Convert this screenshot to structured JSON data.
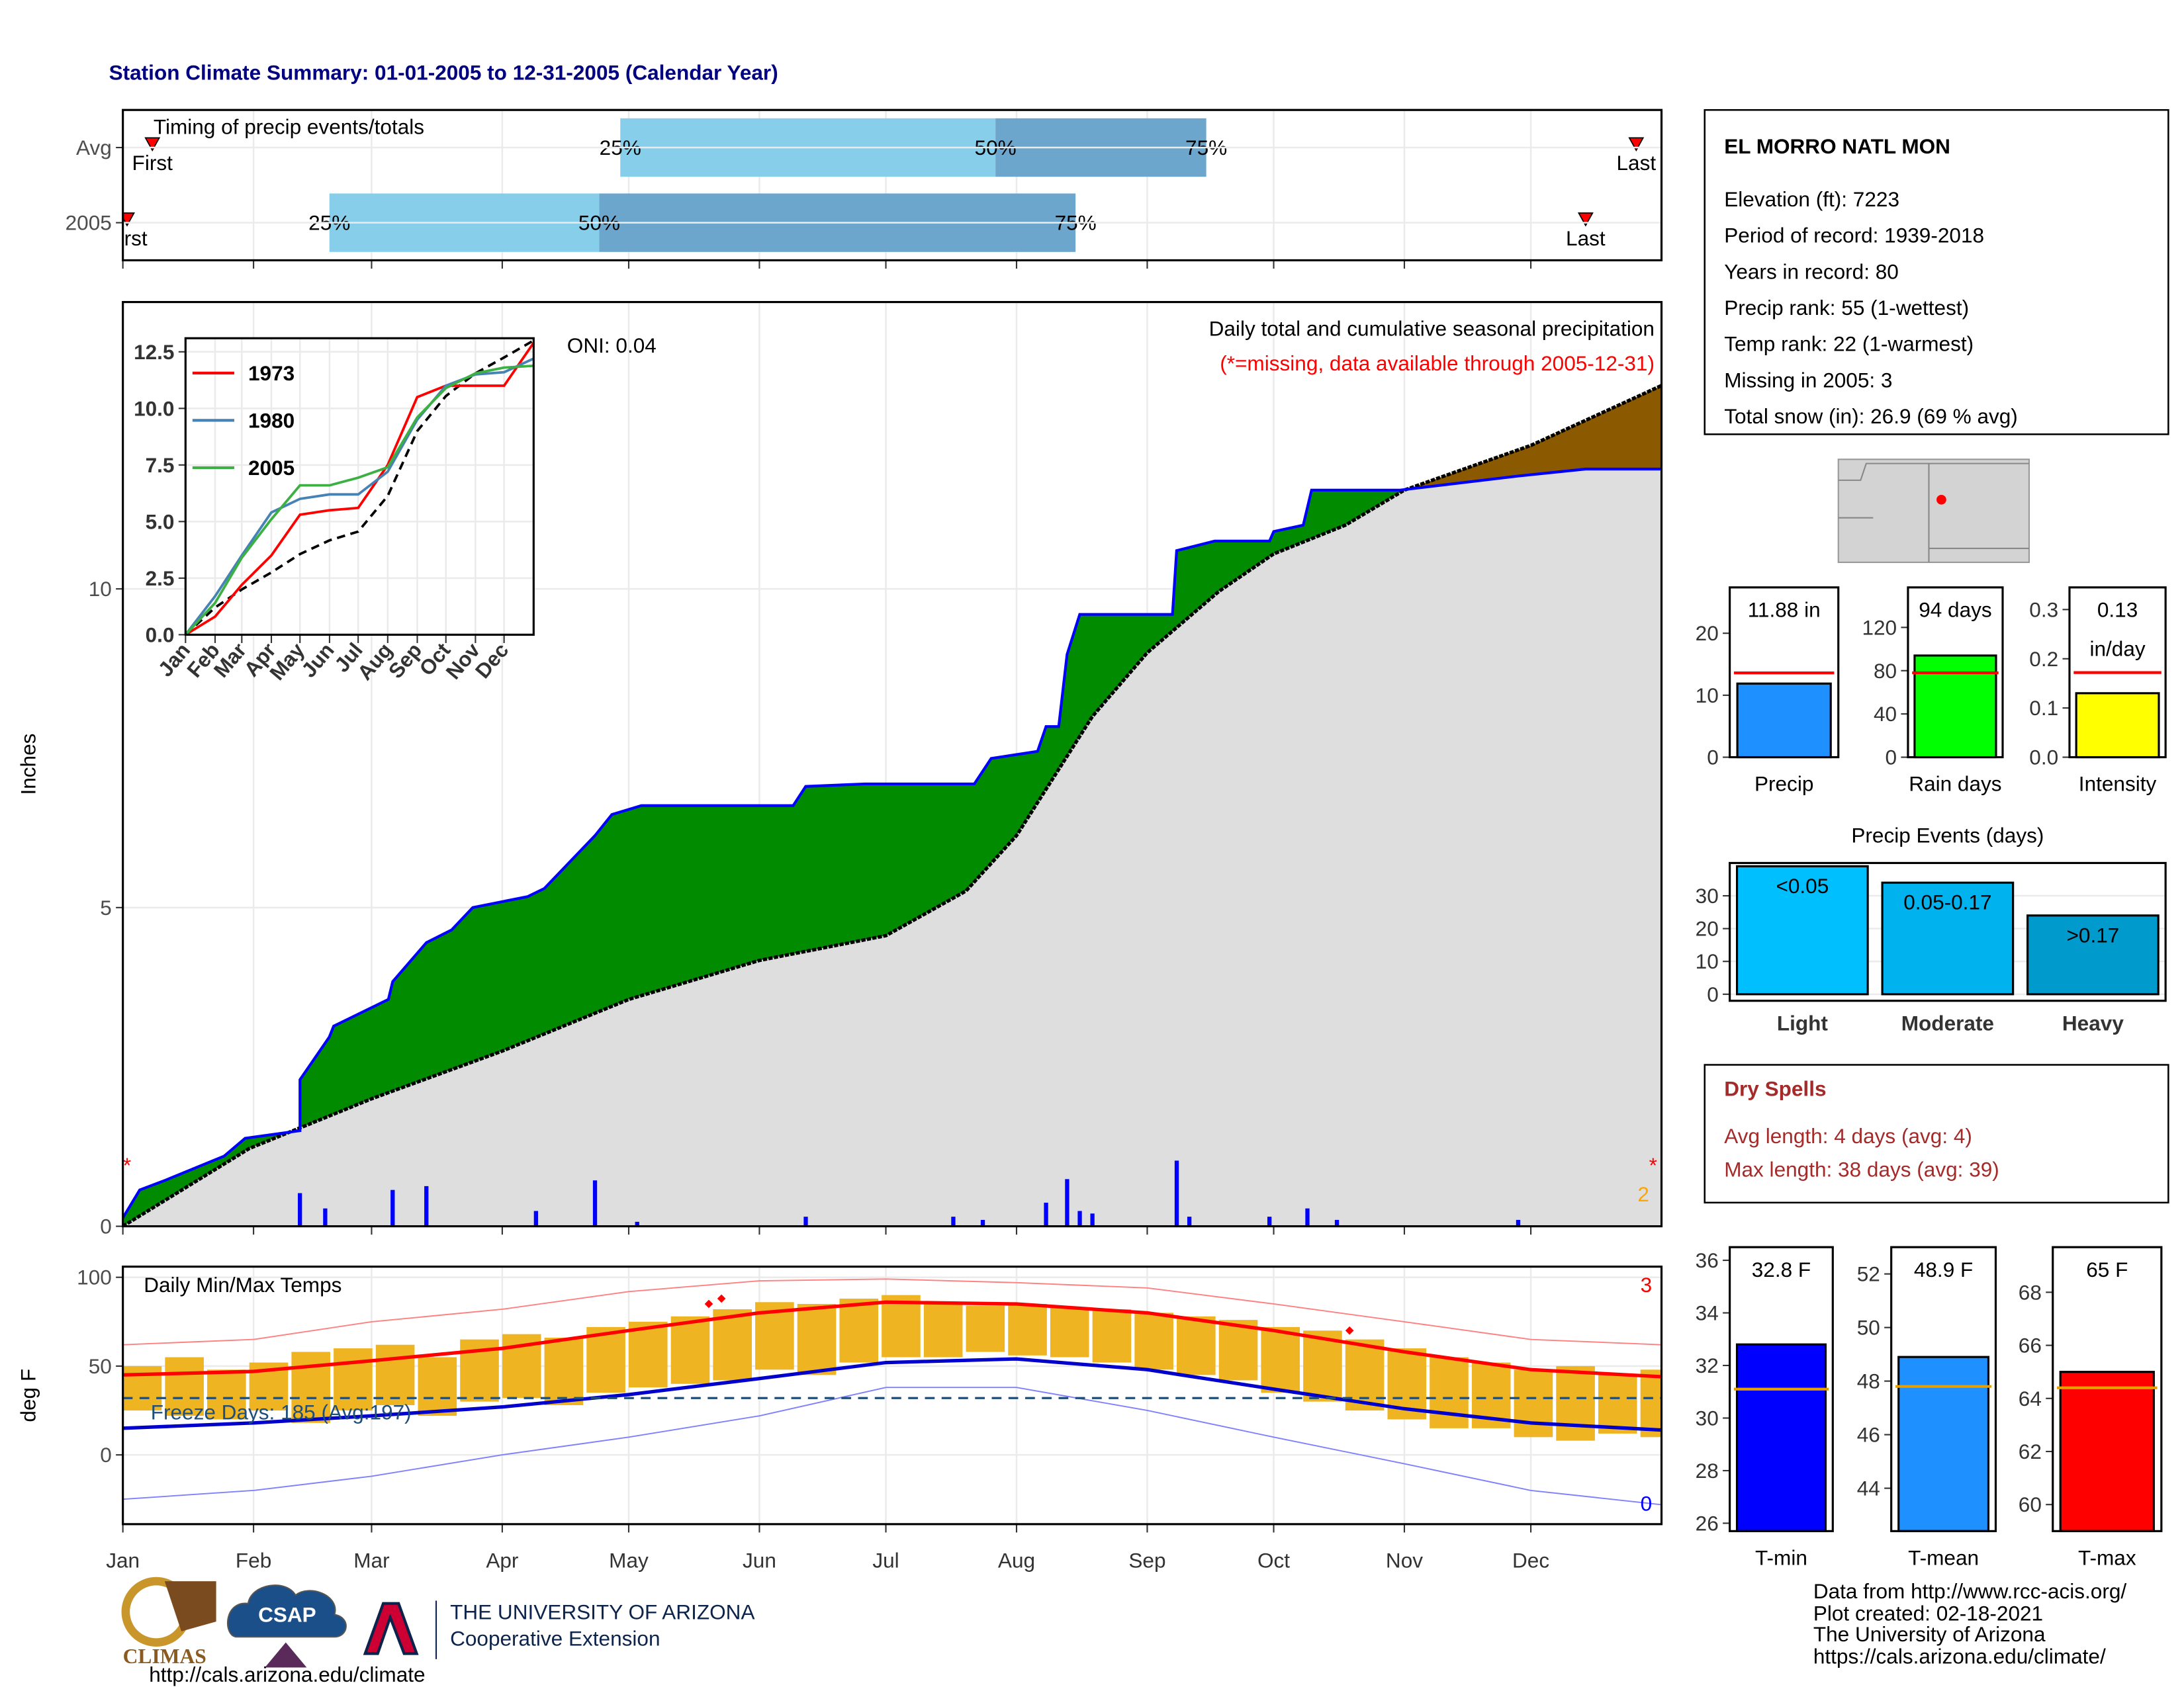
{
  "title": "Station Climate Summary: 01-01-2005 to 12-31-2005 (Calendar Year)",
  "station": {
    "name": "EL MORRO NATL MON",
    "lines": [
      "Elevation (ft): 7223",
      "Period of record: 1939-2018",
      "Years in record: 80",
      "Precip rank: 55 (1-wettest)",
      "Temp rank: 22 (1-warmest)",
      "Missing in 2005: 3",
      "Total snow (in): 26.9 (69 % avg)"
    ]
  },
  "dry_spells": {
    "title": "Dry Spells",
    "lines": [
      "Avg length: 4 days (avg: 4)",
      "Max length: 38 days (avg: 39)"
    ]
  },
  "footer": {
    "lines": [
      "Data from http://www.rcc-acis.org/",
      "Plot created: 02-18-2021",
      "The University of Arizona",
      "https://cals.arizona.edu/climate/"
    ]
  },
  "logos": {
    "climas": "CLIMAS",
    "csap": "CSAP",
    "csap_url": "http://cals.arizona.edu/climate",
    "university": "THE UNIVERSITY OF ARIZONA",
    "extension": "Cooperative Extension"
  },
  "chart_data": [
    {
      "type": "timing",
      "title": "Timing of precip events/totals",
      "categories": [
        "Avg",
        "2005"
      ],
      "series": [
        {
          "name": "First",
          "values": [
            7,
            1
          ]
        },
        {
          "name": "25%",
          "values": [
            118,
            49
          ]
        },
        {
          "name": "50%",
          "values": [
            207,
            113
          ]
        },
        {
          "name": "75%",
          "values": [
            257,
            226
          ]
        },
        {
          "name": "Last",
          "values": [
            359,
            347
          ]
        }
      ],
      "colors": [
        "#87ceeb",
        "#6ca6cd"
      ],
      "marker_color": "#ff0000",
      "xlim": [
        0,
        365
      ],
      "xticks": [
        0,
        31,
        59,
        90,
        120,
        151,
        181,
        212,
        243,
        273,
        304,
        334
      ]
    },
    {
      "type": "cumulative",
      "title": "Daily total and cumulative seasonal precipitation",
      "subtitle": "(*=missing, data available through 2005-12-31)",
      "annotation": "ONI: 0.04",
      "ylabel": "Inches",
      "xlim": [
        0,
        365
      ],
      "xticks": [
        0,
        31,
        59,
        90,
        120,
        151,
        181,
        212,
        243,
        273,
        304,
        334
      ],
      "ylim": [
        0,
        14.5
      ],
      "yticks": [
        0,
        5,
        10
      ],
      "observed": {
        "color": "#0000ff",
        "x": [
          0,
          4,
          10,
          24,
          29,
          42,
          42,
          49,
          50,
          63,
          64,
          72,
          78,
          83,
          96,
          100,
          112,
          116,
          123,
          159,
          162,
          176,
          202,
          206,
          217,
          219,
          222,
          224,
          227,
          232,
          249,
          250,
          259,
          272,
          273,
          280,
          282,
          303,
          331,
          347,
          365
        ],
        "values": [
          0.13,
          0.57,
          0.72,
          1.1,
          1.38,
          1.5,
          2.3,
          2.97,
          3.14,
          3.56,
          3.84,
          4.45,
          4.65,
          5,
          5.17,
          5.3,
          6.13,
          6.46,
          6.6,
          6.6,
          6.9,
          6.94,
          6.94,
          7.34,
          7.45,
          7.84,
          7.84,
          8.97,
          9.6,
          9.6,
          9.6,
          10.6,
          10.75,
          10.75,
          10.9,
          11.0,
          11.55,
          11.55,
          11.77,
          11.88,
          11.88
        ]
      },
      "normal": {
        "color": "#000000",
        "x": [
          0,
          30,
          59,
          90,
          120,
          151,
          181,
          200,
          212,
          230,
          243,
          260,
          273,
          290,
          304,
          334,
          365
        ],
        "values": [
          0,
          1.22,
          2.0,
          2.75,
          3.56,
          4.17,
          4.56,
          5.26,
          6.13,
          8.0,
          9.0,
          9.96,
          10.55,
          11.0,
          11.55,
          12.25,
          13.19
        ]
      },
      "surplus_color": "#008b00",
      "deficit_color": "#8b5a00",
      "base_color": "#dedede",
      "daily": {
        "color": "#0000ff",
        "x": [
          42,
          48,
          64,
          72,
          98,
          112,
          122,
          162,
          197,
          204,
          219,
          224,
          227,
          230,
          250,
          253,
          272,
          281,
          288,
          331
        ],
        "values": [
          0.52,
          0.28,
          0.57,
          0.63,
          0.24,
          0.72,
          0.07,
          0.15,
          0.15,
          0.1,
          0.37,
          0.74,
          0.24,
          0.2,
          1.03,
          0.15,
          0.15,
          0.28,
          0.1,
          0.1
        ]
      },
      "missing": {
        "label": "*",
        "color": "#ff0000",
        "x": [
          1,
          363
        ]
      },
      "count_label": "2",
      "count_color": "#ffa500"
    },
    {
      "type": "line",
      "xlim": [
        0,
        365
      ],
      "x": [
        0,
        31,
        59,
        90,
        120,
        151,
        181,
        212,
        243,
        273,
        304,
        334,
        365
      ],
      "xticks": [
        {
          "value": 0,
          "label": "Jan"
        },
        {
          "value": 31,
          "label": "Feb"
        },
        {
          "value": 59,
          "label": "Mar"
        },
        {
          "value": 90,
          "label": "Apr"
        },
        {
          "value": 120,
          "label": "May"
        },
        {
          "value": 151,
          "label": "Jun"
        },
        {
          "value": 181,
          "label": "Jul"
        },
        {
          "value": 212,
          "label": "Aug"
        },
        {
          "value": 243,
          "label": "Sep"
        },
        {
          "value": 273,
          "label": "Oct"
        },
        {
          "value": 304,
          "label": "Nov"
        },
        {
          "value": 334,
          "label": "Dec"
        }
      ],
      "ylim": [
        0,
        13.1
      ],
      "yticks": [
        {
          "value": 0,
          "label": "0.0"
        },
        2.5,
        {
          "value": 5,
          "label": "5.0"
        },
        7.5,
        {
          "value": 10,
          "label": "10.0"
        },
        12.5
      ],
      "series": [
        {
          "name": "1973",
          "color": "#ff0000",
          "values": [
            0,
            0.8,
            2.2,
            3.5,
            5.3,
            5.5,
            5.6,
            7.5,
            10.5,
            11.0,
            11.0,
            11.0,
            12.9
          ]
        },
        {
          "name": "1980",
          "color": "#4682b4",
          "values": [
            0,
            1.7,
            3.5,
            5.4,
            6.0,
            6.2,
            6.2,
            7.2,
            9.5,
            11.0,
            11.5,
            11.6,
            12.2
          ]
        },
        {
          "name": "2005",
          "color": "#3cb043",
          "values": [
            0,
            1.4,
            3.4,
            5.1,
            6.6,
            6.6,
            6.94,
            7.4,
            9.6,
            10.9,
            11.55,
            11.8,
            11.88
          ]
        }
      ],
      "normal": {
        "color": "#000000",
        "values": [
          0,
          1.2,
          2.0,
          2.75,
          3.56,
          4.17,
          4.56,
          6.13,
          9.0,
          10.55,
          11.55,
          12.25,
          13.0
        ]
      }
    },
    {
      "type": "range",
      "title": "Daily Min/Max Temps",
      "ylabel": "deg F",
      "xlim": [
        0,
        365
      ],
      "xticks": [
        {
          "value": 0,
          "label": "Jan"
        },
        {
          "value": 31,
          "label": "Feb"
        },
        {
          "value": 59,
          "label": "Mar"
        },
        {
          "value": 90,
          "label": "Apr"
        },
        {
          "value": 120,
          "label": "May"
        },
        {
          "value": 151,
          "label": "Jun"
        },
        {
          "value": 181,
          "label": "Jul"
        },
        {
          "value": 212,
          "label": "Aug"
        },
        {
          "value": 243,
          "label": "Sep"
        },
        {
          "value": 273,
          "label": "Oct"
        },
        {
          "value": 304,
          "label": "Nov"
        },
        {
          "value": 334,
          "label": "Dec"
        }
      ],
      "ylim": [
        -39,
        106
      ],
      "yticks": [
        0,
        50,
        100
      ],
      "x": [
        0,
        10,
        20,
        30,
        40,
        50,
        60,
        70,
        80,
        90,
        100,
        110,
        120,
        130,
        140,
        150,
        160,
        170,
        180,
        190,
        200,
        210,
        220,
        230,
        240,
        250,
        260,
        270,
        280,
        290,
        300,
        310,
        320,
        330,
        340,
        350,
        360
      ],
      "highs": [
        50,
        55,
        48,
        52,
        58,
        60,
        62,
        55,
        65,
        68,
        66,
        72,
        75,
        78,
        82,
        86,
        85,
        88,
        90,
        86,
        84,
        85,
        83,
        82,
        80,
        78,
        76,
        72,
        70,
        65,
        60,
        55,
        52,
        48,
        50,
        45,
        48
      ],
      "lows": [
        25,
        22,
        20,
        25,
        18,
        25,
        28,
        22,
        30,
        32,
        28,
        35,
        38,
        40,
        42,
        48,
        45,
        52,
        55,
        55,
        58,
        56,
        55,
        52,
        48,
        45,
        42,
        35,
        30,
        25,
        20,
        15,
        15,
        10,
        8,
        12,
        10
      ],
      "bar_color": "#eeb422",
      "normal_x": [
        0,
        31,
        59,
        90,
        120,
        151,
        181,
        212,
        243,
        273,
        304,
        334,
        365
      ],
      "lines": [
        {
          "color": "#ff8080",
          "values": [
            62,
            65,
            75,
            82,
            92,
            98,
            99,
            97,
            94,
            85,
            75,
            65,
            62
          ]
        },
        {
          "color": "#8080ff",
          "values": [
            -25,
            -20,
            -12,
            0,
            10,
            22,
            38,
            38,
            25,
            10,
            -5,
            -20,
            -28
          ]
        },
        {
          "color": "#ff0000",
          "values": [
            45,
            47,
            53,
            60,
            70,
            80,
            86,
            85,
            80,
            70,
            58,
            48,
            44
          ]
        },
        {
          "color": "#0000cd",
          "values": [
            15,
            18,
            22,
            27,
            34,
            43,
            52,
            54,
            48,
            37,
            26,
            18,
            14
          ]
        }
      ],
      "record_highs": {
        "color": "#ff0000",
        "x": [
          139,
          142,
          291
        ],
        "values": [
          85,
          88,
          70
        ]
      },
      "freeze_line": 32,
      "freeze_color": "#1f4e79",
      "freeze_label": "Freeze Days: 185 (Avg:197)",
      "corner_labels": [
        {
          "text": "3",
          "color": "#ff0000"
        },
        {
          "text": "0",
          "color": "#0000ff"
        }
      ]
    },
    {
      "type": "bar",
      "categories": [
        "Precip"
      ],
      "values": [
        11.88
      ],
      "value_labels": [
        "11.88 in"
      ],
      "average": 13.6,
      "average_color": "#ff0000",
      "color": "#1e90ff",
      "ylim": [
        0,
        27.4
      ],
      "yticks": [
        0,
        10,
        20
      ]
    },
    {
      "type": "bar",
      "categories": [
        "Rain days"
      ],
      "values": [
        94
      ],
      "value_labels": [
        "94 days"
      ],
      "average": 78,
      "average_color": "#ff0000",
      "color": "#00ff00",
      "ylim": [
        0,
        157
      ],
      "yticks": [
        0,
        40,
        80,
        120
      ]
    },
    {
      "type": "bar",
      "categories": [
        "Intensity"
      ],
      "values": [
        0.13
      ],
      "value_unit": "in/day",
      "average": 0.172,
      "average_color": "#ff0000",
      "color": "#ffff00",
      "ylim": [
        0,
        0.345
      ],
      "yticks": [
        {
          "value": 0,
          "label": "0.0"
        },
        0.1,
        0.2,
        0.3
      ]
    },
    {
      "type": "bar",
      "title": "Precip Events (days)",
      "categories": [
        "Light",
        "Moderate",
        "Heavy"
      ],
      "bin_labels": [
        "<0.05",
        "0.05-0.17",
        ">0.17"
      ],
      "values": [
        39,
        34,
        24
      ],
      "colors": [
        "#00bfff",
        "#00b2ee",
        "#009acd"
      ],
      "ylim": [
        -2,
        40
      ],
      "yticks": [
        0,
        10,
        20,
        30
      ],
      "grid": true
    },
    {
      "type": "bar",
      "categories": [
        "T-min"
      ],
      "values": [
        32.8
      ],
      "value_labels": [
        "32.8 F"
      ],
      "average": 31.1,
      "average_color": "#e69f00",
      "color": "#0000ff",
      "ylim": [
        25.7,
        36.5
      ],
      "yticks": [
        26,
        28,
        30,
        32,
        34,
        36
      ]
    },
    {
      "type": "bar",
      "categories": [
        "T-mean"
      ],
      "values": [
        48.9
      ],
      "value_labels": [
        "48.9 F"
      ],
      "average": 47.8,
      "average_color": "#e69f00",
      "color": "#1e90ff",
      "ylim": [
        42.4,
        53
      ],
      "yticks": [
        44,
        46,
        48,
        50,
        52
      ]
    },
    {
      "type": "bar",
      "categories": [
        "T-max"
      ],
      "values": [
        65
      ],
      "value_labels": [
        "65 F"
      ],
      "average": 64.4,
      "average_color": "#e69f00",
      "color": "#ff0000",
      "ylim": [
        59,
        69.7
      ],
      "yticks": [
        60,
        62,
        64,
        66,
        68
      ]
    }
  ]
}
